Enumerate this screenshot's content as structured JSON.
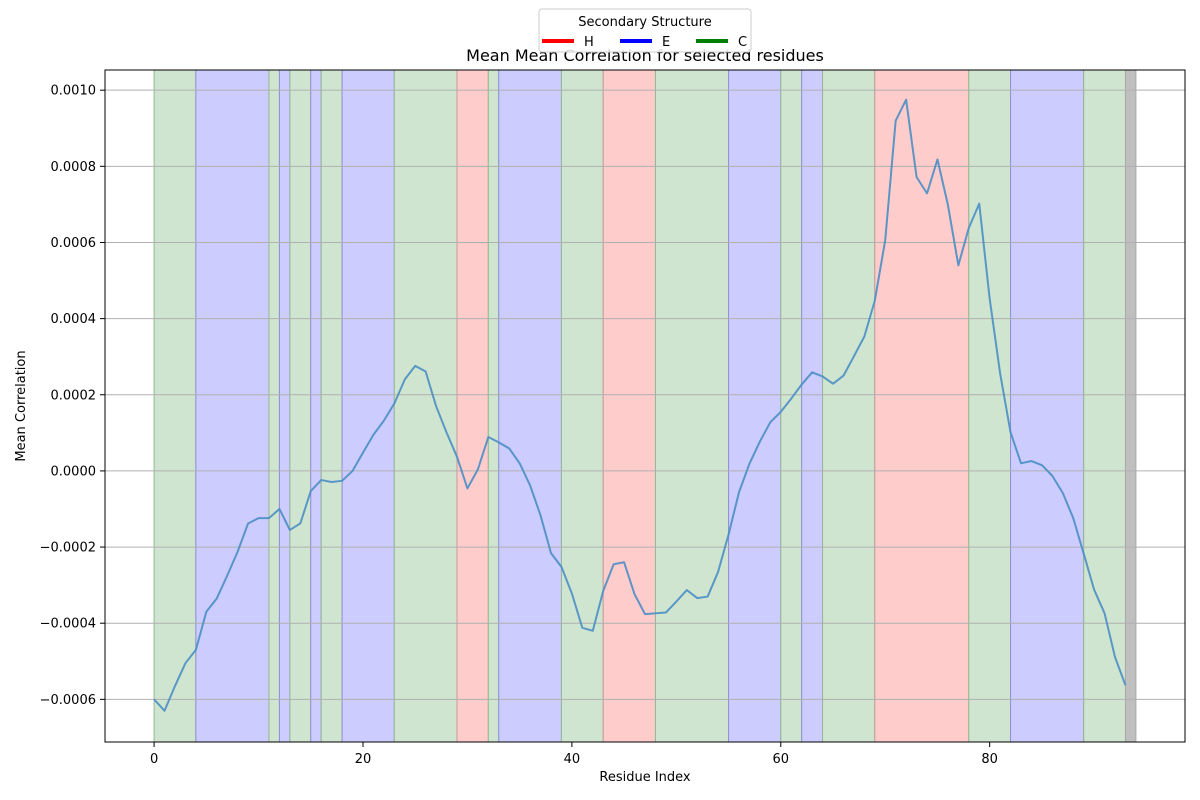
{
  "chart_data": {
    "type": "line",
    "title": "Mean Mean Correlation for selected residues",
    "xlabel": "Residue Index",
    "ylabel": "Mean Correlation",
    "xlim": [
      -4.7,
      98.7
    ],
    "ylim": [
      -0.000712,
      0.001053
    ],
    "xticks": [
      0,
      20,
      40,
      60,
      80
    ],
    "xtick_labels": [
      "0",
      "20",
      "40",
      "60",
      "80"
    ],
    "yticks": [
      -0.0006,
      -0.0004,
      -0.0002,
      0.0,
      0.0002,
      0.0004,
      0.0006,
      0.0008,
      0.001
    ],
    "ytick_labels": [
      "−0.0006",
      "−0.0004",
      "−0.0002",
      "0.0000",
      "0.0002",
      "0.0004",
      "0.0006",
      "0.0008",
      "0.0010"
    ],
    "grid": "horizontal",
    "line_color": "#4a8ec4",
    "series": [
      {
        "name": "",
        "x": [
          0,
          1,
          2,
          3,
          4,
          5,
          6,
          7,
          8,
          9,
          10,
          11,
          12,
          13,
          14,
          15,
          16,
          17,
          18,
          19,
          20,
          21,
          22,
          23,
          24,
          25,
          26,
          27,
          28,
          29,
          30,
          31,
          32,
          33,
          34,
          35,
          36,
          37,
          38,
          39,
          40,
          41,
          42,
          43,
          44,
          45,
          46,
          47,
          48,
          49,
          50,
          51,
          52,
          53,
          54,
          55,
          56,
          57,
          58,
          59,
          60,
          61,
          62,
          63,
          64,
          65,
          66,
          67,
          68,
          69,
          70,
          71,
          72,
          73,
          74,
          75,
          76,
          77,
          78,
          79,
          80,
          81,
          82,
          83,
          84,
          85,
          86,
          87,
          88,
          89,
          90,
          91,
          92,
          93
        ],
        "values": [
          -0.0006,
          -0.00063,
          -0.000565,
          -0.000505,
          -0.00047,
          -0.00037,
          -0.000335,
          -0.000275,
          -0.000212,
          -0.000138,
          -0.000124,
          -0.000124,
          -0.0001,
          -0.000155,
          -0.000138,
          -5.3e-05,
          -2.4e-05,
          -2.9e-05,
          -2.6e-05,
          0.0,
          4.8e-05,
          9.5e-05,
          0.000132,
          0.000177,
          0.00024,
          0.000276,
          0.000261,
          0.00017,
          0.000101,
          3.7e-05,
          -4.6e-05,
          4e-06,
          8.9e-05,
          7.5e-05,
          5.9e-05,
          2e-05,
          -3.8e-05,
          -0.000117,
          -0.000216,
          -0.000252,
          -0.000322,
          -0.000412,
          -0.00042,
          -0.000315,
          -0.000245,
          -0.00024,
          -0.000324,
          -0.000376,
          -0.000374,
          -0.000372,
          -0.000343,
          -0.000313,
          -0.000334,
          -0.00033,
          -0.000265,
          -0.000167,
          -5.6e-05,
          1.9e-05,
          7.7e-05,
          0.000128,
          0.000155,
          0.00019,
          0.000227,
          0.000259,
          0.000248,
          0.000229,
          0.00025,
          0.000301,
          0.000353,
          0.000447,
          0.000606,
          0.00092,
          0.000975,
          0.000772,
          0.000729,
          0.000818,
          0.000699,
          0.00054,
          0.000638,
          0.000702,
          0.000452,
          0.000256,
          0.000101,
          2e-05,
          2.6e-05,
          1.5e-05,
          -1.3e-05,
          -5.8e-05,
          -0.000124,
          -0.000217,
          -0.000312,
          -0.000374,
          -0.000489,
          -0.000563
        ]
      }
    ],
    "bands": [
      {
        "ss": "C",
        "start": 0,
        "end": 4
      },
      {
        "ss": "E",
        "start": 4,
        "end": 11
      },
      {
        "ss": "C",
        "start": 11,
        "end": 12
      },
      {
        "ss": "E",
        "start": 12,
        "end": 13
      },
      {
        "ss": "C",
        "start": 13,
        "end": 15
      },
      {
        "ss": "E",
        "start": 15,
        "end": 16
      },
      {
        "ss": "C",
        "start": 16,
        "end": 18
      },
      {
        "ss": "E",
        "start": 18,
        "end": 23
      },
      {
        "ss": "C",
        "start": 23,
        "end": 29
      },
      {
        "ss": "H",
        "start": 29,
        "end": 32
      },
      {
        "ss": "C",
        "start": 32,
        "end": 33
      },
      {
        "ss": "E",
        "start": 33,
        "end": 39
      },
      {
        "ss": "C",
        "start": 39,
        "end": 43
      },
      {
        "ss": "H",
        "start": 43,
        "end": 48
      },
      {
        "ss": "C",
        "start": 48,
        "end": 55
      },
      {
        "ss": "E",
        "start": 55,
        "end": 60
      },
      {
        "ss": "C",
        "start": 60,
        "end": 62
      },
      {
        "ss": "E",
        "start": 62,
        "end": 64
      },
      {
        "ss": "C",
        "start": 64,
        "end": 69
      },
      {
        "ss": "H",
        "start": 69,
        "end": 78
      },
      {
        "ss": "C",
        "start": 78,
        "end": 82
      },
      {
        "ss": "E",
        "start": 82,
        "end": 89
      },
      {
        "ss": "C",
        "start": 89,
        "end": 93
      },
      {
        "ss": "other",
        "start": 93,
        "end": 94
      }
    ],
    "band_colors": {
      "H": "#ffcccc",
      "E": "#ccccff",
      "C": "#cfe5cf",
      "other": "#bfbfbf"
    },
    "band_edge_colors": {
      "H": "#cc9999",
      "E": "#8f8fd8",
      "C": "#93b893",
      "other": "#a8a8a8"
    },
    "legend": {
      "title": "Secondary Structure",
      "placement": "top-center",
      "entries": [
        {
          "label": "H",
          "color": "#ff0000"
        },
        {
          "label": "E",
          "color": "#0000ff"
        },
        {
          "label": "C",
          "color": "#008000"
        }
      ]
    }
  }
}
